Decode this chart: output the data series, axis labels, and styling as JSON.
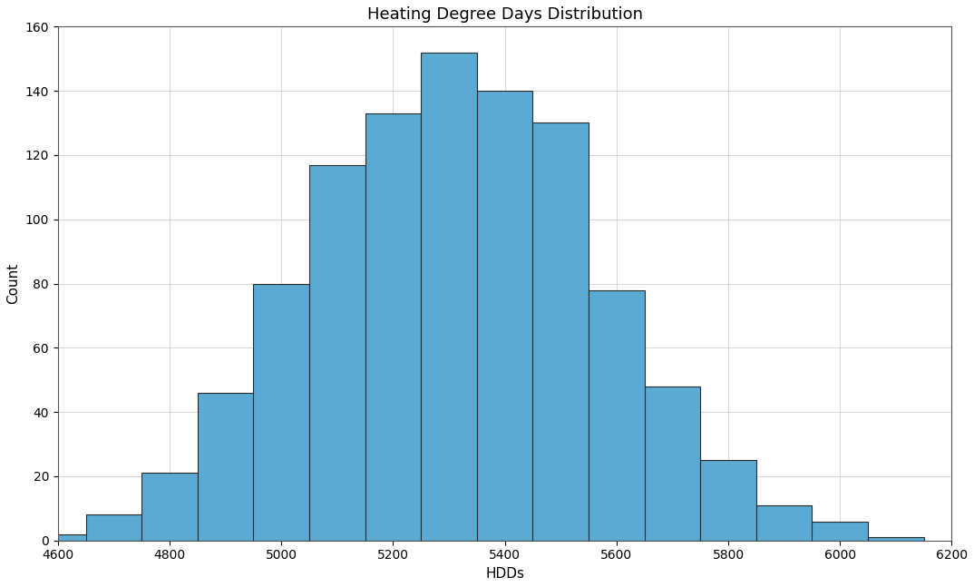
{
  "title": "Heating Degree Days Distribution",
  "xlabel": "HDDs",
  "ylabel": "Count",
  "bar_color": "#5BAAD4",
  "edge_color": "#2a2a2a",
  "bin_edges": [
    4550,
    4650,
    4750,
    4850,
    4950,
    5050,
    5150,
    5250,
    5350,
    5450,
    5550,
    5650,
    5750,
    5850,
    5950,
    6050,
    6150
  ],
  "counts": [
    2,
    8,
    21,
    46,
    80,
    117,
    133,
    152,
    140,
    130,
    78,
    48,
    25,
    11,
    6,
    1
  ],
  "xlim": [
    4600,
    6200
  ],
  "ylim": [
    0,
    160
  ],
  "xticks": [
    4600,
    4800,
    5000,
    5200,
    5400,
    5600,
    5800,
    6000,
    6200
  ],
  "yticks": [
    0,
    20,
    40,
    60,
    80,
    100,
    120,
    140,
    160
  ],
  "grid_color": "#c8c8c8",
  "grid_linestyle": "-",
  "grid_linewidth": 0.5,
  "title_fontsize": 13,
  "label_fontsize": 11,
  "tick_fontsize": 10,
  "figsize": [
    10.74,
    6.47
  ],
  "dpi": 100
}
